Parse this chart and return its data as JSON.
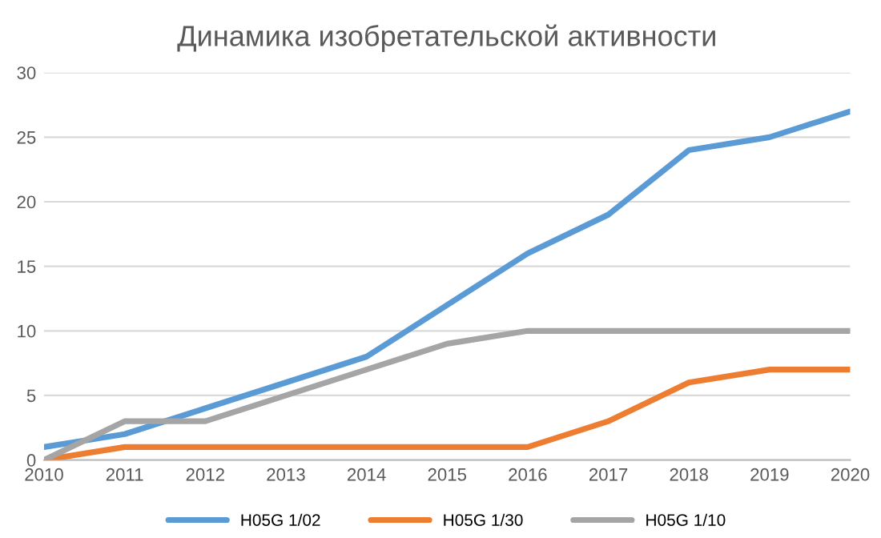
{
  "chart_data": {
    "type": "line",
    "title": "Динамика изобретательской активности",
    "x": [
      2010,
      2011,
      2012,
      2013,
      2014,
      2015,
      2016,
      2017,
      2018,
      2019,
      2020
    ],
    "series": [
      {
        "name": "H05G 1/02",
        "color": "#5b9bd5",
        "values": [
          1,
          2,
          4,
          6,
          8,
          12,
          16,
          19,
          24,
          25,
          27
        ]
      },
      {
        "name": "H05G 1/30",
        "color": "#ed7d31",
        "values": [
          0,
          1,
          1,
          1,
          1,
          1,
          1,
          3,
          6,
          7,
          7
        ]
      },
      {
        "name": "H05G 1/10",
        "color": "#a5a5a5",
        "values": [
          0,
          3,
          3,
          5,
          7,
          9,
          10,
          10,
          10,
          10,
          10
        ]
      }
    ],
    "xlim": [
      2010,
      2020
    ],
    "xticks": [
      2010,
      2011,
      2012,
      2013,
      2014,
      2015,
      2016,
      2017,
      2018,
      2019,
      2020
    ],
    "ylim": [
      0,
      30
    ],
    "yticks": [
      0,
      5,
      10,
      15,
      20,
      25,
      30
    ],
    "grid": "y",
    "legend": "bottom",
    "marker": "none",
    "line_style": "solid"
  }
}
